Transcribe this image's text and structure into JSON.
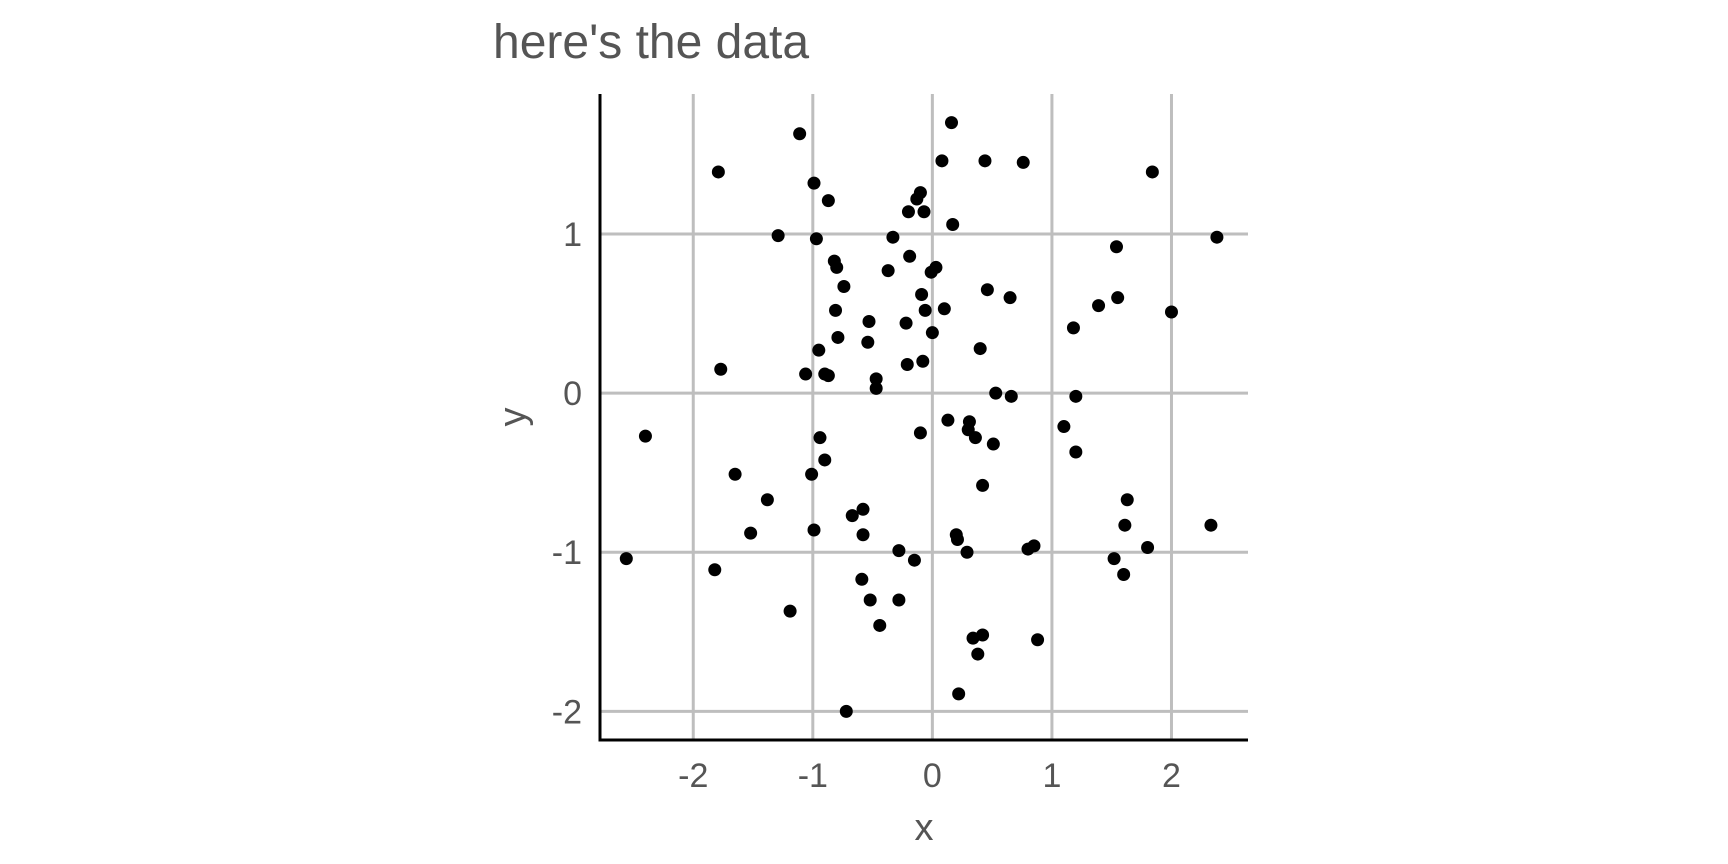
{
  "chart_data": {
    "type": "scatter",
    "title": "here's the data",
    "xlabel": "x",
    "ylabel": "y",
    "xlim": [
      -2.78,
      2.64
    ],
    "ylim": [
      -2.18,
      1.88
    ],
    "xticks": [
      -2,
      -1,
      0,
      1,
      2
    ],
    "yticks": [
      -2,
      -1,
      0,
      1
    ],
    "xtick_labels": [
      "-2",
      "-1",
      "0",
      "1",
      "2"
    ],
    "ytick_labels": [
      "-2",
      "-1",
      "0",
      "1"
    ],
    "grid": true,
    "legend": "none",
    "point_color": "#000000",
    "points": [
      {
        "x": -1.11,
        "y": 1.63
      },
      {
        "x": -1.79,
        "y": 1.39
      },
      {
        "x": -0.99,
        "y": 1.32
      },
      {
        "x": -0.87,
        "y": 1.21
      },
      {
        "x": 0.16,
        "y": 1.7
      },
      {
        "x": 0.08,
        "y": 1.46
      },
      {
        "x": 0.44,
        "y": 1.46
      },
      {
        "x": 0.76,
        "y": 1.45
      },
      {
        "x": 1.84,
        "y": 1.39
      },
      {
        "x": -0.1,
        "y": 1.26
      },
      {
        "x": -0.13,
        "y": 1.22
      },
      {
        "x": -0.2,
        "y": 1.14
      },
      {
        "x": -0.07,
        "y": 1.14
      },
      {
        "x": 0.17,
        "y": 1.06
      },
      {
        "x": -1.29,
        "y": 0.99
      },
      {
        "x": -0.97,
        "y": 0.97
      },
      {
        "x": -0.33,
        "y": 0.98
      },
      {
        "x": 1.54,
        "y": 0.92
      },
      {
        "x": 2.38,
        "y": 0.98
      },
      {
        "x": -0.82,
        "y": 0.83
      },
      {
        "x": -0.8,
        "y": 0.79
      },
      {
        "x": -0.19,
        "y": 0.86
      },
      {
        "x": -0.37,
        "y": 0.77
      },
      {
        "x": -0.01,
        "y": 0.76
      },
      {
        "x": 0.03,
        "y": 0.79
      },
      {
        "x": -0.74,
        "y": 0.67
      },
      {
        "x": -0.09,
        "y": 0.62
      },
      {
        "x": 0.46,
        "y": 0.65
      },
      {
        "x": 0.65,
        "y": 0.6
      },
      {
        "x": 1.55,
        "y": 0.6
      },
      {
        "x": 1.39,
        "y": 0.55
      },
      {
        "x": 2.0,
        "y": 0.51
      },
      {
        "x": -0.81,
        "y": 0.52
      },
      {
        "x": -0.06,
        "y": 0.52
      },
      {
        "x": 0.1,
        "y": 0.53
      },
      {
        "x": -0.53,
        "y": 0.45
      },
      {
        "x": -0.22,
        "y": 0.44
      },
      {
        "x": 1.18,
        "y": 0.41
      },
      {
        "x": -0.79,
        "y": 0.35
      },
      {
        "x": 0.0,
        "y": 0.38
      },
      {
        "x": -0.54,
        "y": 0.32
      },
      {
        "x": -0.95,
        "y": 0.27
      },
      {
        "x": 0.4,
        "y": 0.28
      },
      {
        "x": -1.77,
        "y": 0.15
      },
      {
        "x": -1.06,
        "y": 0.12
      },
      {
        "x": -0.9,
        "y": 0.12
      },
      {
        "x": -0.87,
        "y": 0.11
      },
      {
        "x": -0.21,
        "y": 0.18
      },
      {
        "x": -0.08,
        "y": 0.2
      },
      {
        "x": -0.47,
        "y": 0.09
      },
      {
        "x": -0.47,
        "y": 0.03
      },
      {
        "x": 0.53,
        "y": 0.0
      },
      {
        "x": 0.66,
        "y": -0.02
      },
      {
        "x": 1.2,
        "y": -0.02
      },
      {
        "x": 0.13,
        "y": -0.17
      },
      {
        "x": 0.31,
        "y": -0.18
      },
      {
        "x": 1.1,
        "y": -0.21
      },
      {
        "x": -0.1,
        "y": -0.25
      },
      {
        "x": 0.3,
        "y": -0.23
      },
      {
        "x": 0.36,
        "y": -0.28
      },
      {
        "x": 0.51,
        "y": -0.32
      },
      {
        "x": -2.4,
        "y": -0.27
      },
      {
        "x": -0.94,
        "y": -0.28
      },
      {
        "x": 1.2,
        "y": -0.37
      },
      {
        "x": -0.9,
        "y": -0.42
      },
      {
        "x": -1.65,
        "y": -0.51
      },
      {
        "x": -1.01,
        "y": -0.51
      },
      {
        "x": 0.42,
        "y": -0.58
      },
      {
        "x": -1.38,
        "y": -0.67
      },
      {
        "x": 1.63,
        "y": -0.67
      },
      {
        "x": -0.58,
        "y": -0.73
      },
      {
        "x": -0.67,
        "y": -0.77
      },
      {
        "x": 1.61,
        "y": -0.83
      },
      {
        "x": 2.33,
        "y": -0.83
      },
      {
        "x": -1.52,
        "y": -0.88
      },
      {
        "x": -0.99,
        "y": -0.86
      },
      {
        "x": -0.58,
        "y": -0.89
      },
      {
        "x": 0.2,
        "y": -0.89
      },
      {
        "x": 0.21,
        "y": -0.92
      },
      {
        "x": -0.28,
        "y": -0.99
      },
      {
        "x": 0.29,
        "y": -1.0
      },
      {
        "x": 0.8,
        "y": -0.98
      },
      {
        "x": 0.85,
        "y": -0.96
      },
      {
        "x": 1.8,
        "y": -0.97
      },
      {
        "x": -2.56,
        "y": -1.04
      },
      {
        "x": -0.15,
        "y": -1.05
      },
      {
        "x": 1.52,
        "y": -1.04
      },
      {
        "x": -1.82,
        "y": -1.11
      },
      {
        "x": 1.6,
        "y": -1.14
      },
      {
        "x": -0.59,
        "y": -1.17
      },
      {
        "x": -0.52,
        "y": -1.3
      },
      {
        "x": -0.28,
        "y": -1.3
      },
      {
        "x": -1.19,
        "y": -1.37
      },
      {
        "x": -0.44,
        "y": -1.46
      },
      {
        "x": 0.34,
        "y": -1.54
      },
      {
        "x": 0.42,
        "y": -1.52
      },
      {
        "x": 0.88,
        "y": -1.55
      },
      {
        "x": 0.38,
        "y": -1.64
      },
      {
        "x": 0.22,
        "y": -1.89
      },
      {
        "x": -0.72,
        "y": -2.0
      }
    ]
  }
}
